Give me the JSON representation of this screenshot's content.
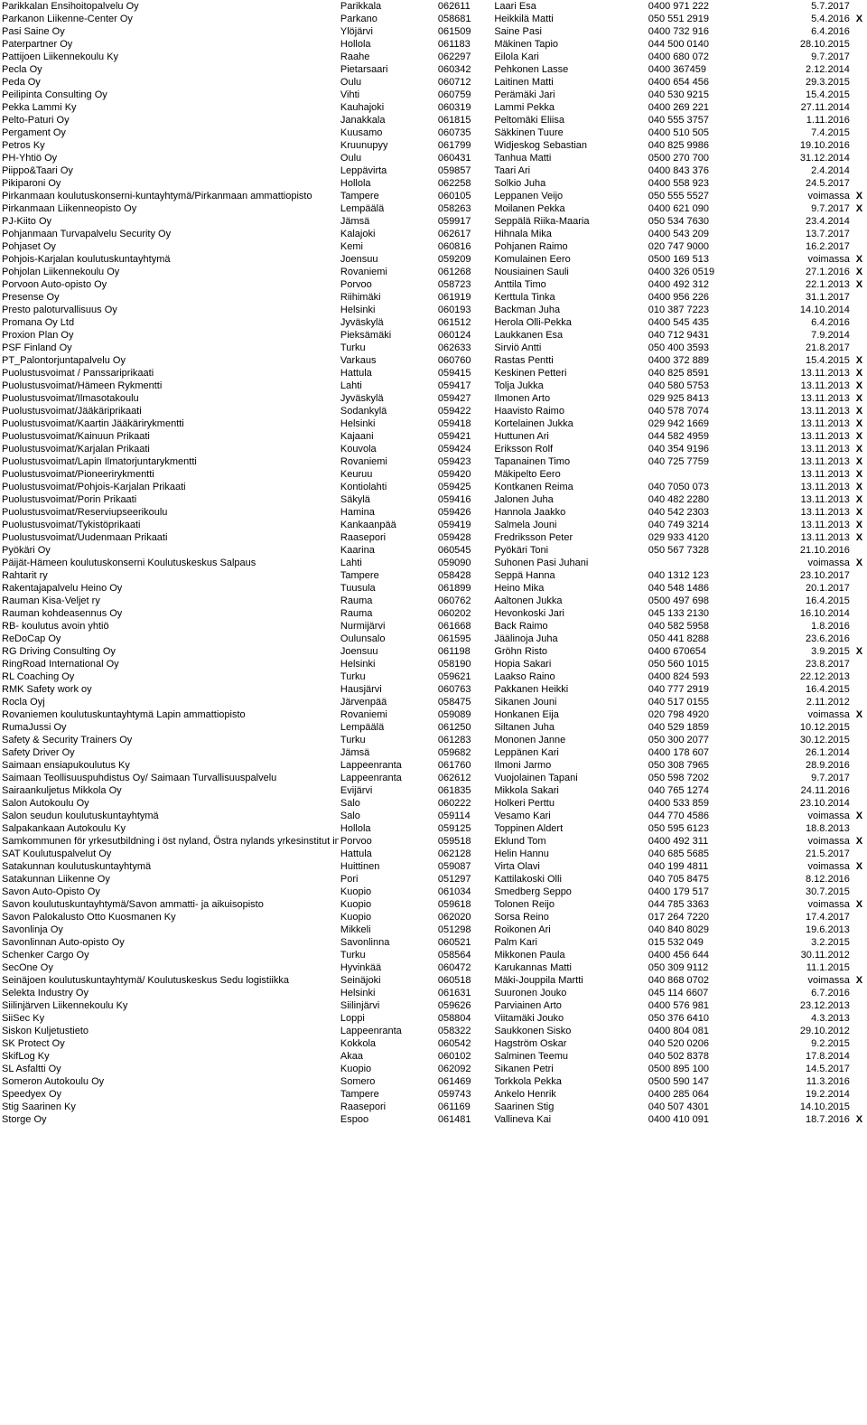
{
  "columns": [
    "company",
    "city",
    "code",
    "person",
    "phone",
    "date",
    "x"
  ],
  "widths": [
    330,
    95,
    55,
    150,
    110,
    90,
    15
  ],
  "rows": [
    [
      "Parikkalan Ensihoitopalvelu Oy",
      "Parikkala",
      "062611",
      "Laari Esa",
      "0400 971 222",
      "5.7.2017",
      ""
    ],
    [
      "Parkanon Liikenne-Center Oy",
      "Parkano",
      "058681",
      "Heikkilä Matti",
      "050 551 2919",
      "5.4.2016",
      "X"
    ],
    [
      "Pasi Saine Oy",
      "Ylöjärvi",
      "061509",
      "Saine Pasi",
      "0400 732 916",
      "6.4.2016",
      ""
    ],
    [
      "Paterpartner Oy",
      "Hollola",
      "061183",
      "Mäkinen Tapio",
      "044 500 0140",
      "28.10.2015",
      ""
    ],
    [
      "Pattijoen Liikennekoulu Ky",
      "Raahe",
      "062297",
      "Eilola Kari",
      "0400 680 072",
      "9.7.2017",
      ""
    ],
    [
      "Pecla Oy",
      "Pietarsaari",
      "060342",
      "Pehkonen Lasse",
      "0400 367459",
      "2.12.2014",
      ""
    ],
    [
      "Peda Oy",
      "Oulu",
      "060712",
      "Laitinen Matti",
      "0400 654 456",
      "29.3.2015",
      ""
    ],
    [
      "Peilipinta Consulting Oy",
      "Vihti",
      "060759",
      "Perämäki Jari",
      "040 530 9215",
      "15.4.2015",
      ""
    ],
    [
      "Pekka Lammi Ky",
      "Kauhajoki",
      "060319",
      "Lammi Pekka",
      "0400 269 221",
      "27.11.2014",
      ""
    ],
    [
      "Pelto-Paturi Oy",
      "Janakkala",
      "061815",
      "Peltomäki Eliisa",
      "040 555 3757",
      "1.11.2016",
      ""
    ],
    [
      "Pergament Oy",
      "Kuusamo",
      "060735",
      "Säkkinen Tuure",
      "0400 510 505",
      "7.4.2015",
      ""
    ],
    [
      "Petros Ky",
      "Kruunupyy",
      "061799",
      "Widjeskog Sebastian",
      "040 825 9986",
      "19.10.2016",
      ""
    ],
    [
      "PH-Yhtiö Oy",
      "Oulu",
      "060431",
      "Tanhua Matti",
      "0500 270 700",
      "31.12.2014",
      ""
    ],
    [
      "Piippo&Taari Oy",
      "Leppävirta",
      "059857",
      "Taari Ari",
      "0400 843 376",
      "2.4.2014",
      ""
    ],
    [
      "Pikiparoni Oy",
      "Hollola",
      "062258",
      "Solkio Juha",
      "0400 558 923",
      "24.5.2017",
      ""
    ],
    [
      "Pirkanmaan koulutuskonserni-kuntayhtymä/Pirkanmaan ammattiopisto",
      "Tampere",
      "060105",
      "Leppanen Veijo",
      "050 555 5527",
      "voimassa",
      "X"
    ],
    [
      "Pirkanmaan Liikenneopisto Oy",
      "Lempäälä",
      "058263",
      "Moilanen Pekka",
      "0400 621 090",
      "9.7.2017",
      "X"
    ],
    [
      "PJ-Kiito Oy",
      "Jämsä",
      "059917",
      "Seppälä Riika-Maaria",
      "050 534 7630",
      "23.4.2014",
      ""
    ],
    [
      "Pohjanmaan Turvapalvelu Security Oy",
      "Kalajoki",
      "062617",
      "Hihnala Mika",
      "0400 543 209",
      "13.7.2017",
      ""
    ],
    [
      "Pohjaset Oy",
      "Kemi",
      "060816",
      "Pohjanen Raimo",
      "020 747 9000",
      "16.2.2017",
      ""
    ],
    [
      "Pohjois-Karjalan koulutuskuntayhtymä",
      "Joensuu",
      "059209",
      "Komulainen Eero",
      "0500 169 513",
      "voimassa",
      "X"
    ],
    [
      "Pohjolan Liikennekoulu Oy",
      "Rovaniemi",
      "061268",
      "Nousiainen Sauli",
      "0400 326 0519",
      "27.1.2016",
      "X"
    ],
    [
      "Porvoon Auto-opisto Oy",
      "Porvoo",
      "058723",
      "Anttila Timo",
      "0400 492 312",
      "22.1.2013",
      "X"
    ],
    [
      "Presense Oy",
      "Riihimäki",
      "061919",
      "Kerttula Tinka",
      "0400 956 226",
      "31.1.2017",
      ""
    ],
    [
      "Presto paloturvallisuus Oy",
      "Helsinki",
      "060193",
      "Backman Juha",
      "010 387 7223",
      "14.10.2014",
      ""
    ],
    [
      "Promana Oy Ltd",
      "Jyväskylä",
      "061512",
      "Herola Olli-Pekka",
      "0400 545 435",
      "6.4.2016",
      ""
    ],
    [
      "Proxion Plan Oy",
      "Pieksämäki",
      "060124",
      "Laukkanen Esa",
      "040 712 9431",
      "7.9.2014",
      ""
    ],
    [
      "PSF Finland Oy",
      "Turku",
      "062633",
      "Sirviö Antti",
      "050 400 3593",
      "21.8.2017",
      ""
    ],
    [
      "PT_Palontorjuntapalvelu Oy",
      "Varkaus",
      "060760",
      "Rastas Pentti",
      "0400 372 889",
      "15.4.2015",
      "X"
    ],
    [
      "Puolustusvoimat / Panssariprikaati",
      "Hattula",
      "059415",
      "Keskinen Petteri",
      "040 825 8591",
      "13.11.2013",
      "X"
    ],
    [
      "Puolustusvoimat/Hämeen Rykmentti",
      "Lahti",
      "059417",
      "Tolja Jukka",
      "040 580 5753",
      "13.11.2013",
      "X"
    ],
    [
      "Puolustusvoimat/Ilmasotakoulu",
      "Jyväskylä",
      "059427",
      "Ilmonen Arto",
      "029 925 8413",
      "13.11.2013",
      "X"
    ],
    [
      "Puolustusvoimat/Jääkäriprikaati",
      "Sodankylä",
      "059422",
      "Haavisto Raimo",
      "040 578 7074",
      "13.11.2013",
      "X"
    ],
    [
      "Puolustusvoimat/Kaartin Jääkärirykmentti",
      "Helsinki",
      "059418",
      "Kortelainen Jukka",
      "029 942 1669",
      "13.11.2013",
      "X"
    ],
    [
      "Puolustusvoimat/Kainuun Prikaati",
      "Kajaani",
      "059421",
      "Huttunen Ari",
      "044 582 4959",
      "13.11.2013",
      "X"
    ],
    [
      "Puolustusvoimat/Karjalan Prikaati",
      "Kouvola",
      "059424",
      "Eriksson Rolf",
      "040 354 9196",
      "13.11.2013",
      "X"
    ],
    [
      "Puolustusvoimat/Lapin Ilmatorjuntarykmentti",
      "Rovaniemi",
      "059423",
      "Tapanainen Timo",
      "040 725 7759",
      "13.11.2013",
      "X"
    ],
    [
      "Puolustusvoimat/Pioneerirykmentti",
      "Keuruu",
      "059420",
      "Mäkipelto Eero",
      "",
      "13.11.2013",
      "X"
    ],
    [
      "Puolustusvoimat/Pohjois-Karjalan Prikaati",
      "Kontiolahti",
      "059425",
      "Kontkanen Reima",
      "040 7050 073",
      "13.11.2013",
      "X"
    ],
    [
      "Puolustusvoimat/Porin Prikaati",
      "Säkylä",
      "059416",
      "Jalonen Juha",
      "040 482 2280",
      "13.11.2013",
      "X"
    ],
    [
      "Puolustusvoimat/Reserviupseerikoulu",
      "Hamina",
      "059426",
      "Hannola Jaakko",
      "040 542 2303",
      "13.11.2013",
      "X"
    ],
    [
      "Puolustusvoimat/Tykistöprikaati",
      "Kankaanpää",
      "059419",
      "Salmela Jouni",
      "040 749 3214",
      "13.11.2013",
      "X"
    ],
    [
      "Puolustusvoimat/Uudenmaan Prikaati",
      "Raasepori",
      "059428",
      "Fredriksson Peter",
      "029 933 4120",
      "13.11.2013",
      "X"
    ],
    [
      "Pyökäri Oy",
      "Kaarina",
      "060545",
      "Pyökäri Toni",
      "050 567 7328",
      "21.10.2016",
      ""
    ],
    [
      "Päijät-Hämeen koulutuskonserni Koulutuskeskus Salpaus",
      "Lahti",
      "059090",
      "Suhonen Pasi Juhani",
      "",
      "voimassa",
      "X"
    ],
    [
      "Rahtarit ry",
      "Tampere",
      "058428",
      "Seppä Hanna",
      "040 1312 123",
      "23.10.2017",
      ""
    ],
    [
      "Rakentajapalvelu Heino Oy",
      "Tuusula",
      "061899",
      "Heino Mika",
      "040 548 1486",
      "20.1.2017",
      ""
    ],
    [
      "Rauman Kisa-Veljet ry",
      "Rauma",
      "060762",
      "Aaltonen Jukka",
      "0500 497 698",
      "16.4.2015",
      ""
    ],
    [
      "Rauman kohdeasennus Oy",
      "Rauma",
      "060202",
      "Hevonkoski Jari",
      "045 133 2130",
      "16.10.2014",
      ""
    ],
    [
      "RB- koulutus avoin yhtiö",
      "Nurmijärvi",
      "061668",
      "Back Raimo",
      "040 582 5958",
      "1.8.2016",
      ""
    ],
    [
      "ReDoCap Oy",
      "Oulunsalo",
      "061595",
      "Jäälinoja Juha",
      "050 441 8288",
      "23.6.2016",
      ""
    ],
    [
      "RG Driving Consulting Oy",
      "Joensuu",
      "061198",
      "Gröhn Risto",
      "0400 670654",
      "3.9.2015",
      "X"
    ],
    [
      "RingRoad International Oy",
      "Helsinki",
      "058190",
      "Hopia Sakari",
      "050 560 1015",
      "23.8.2017",
      ""
    ],
    [
      "RL Coaching Oy",
      "Turku",
      "059621",
      "Laakso Raino",
      "0400 824 593",
      "22.12.2013",
      ""
    ],
    [
      "RMK Safety work oy",
      "Hausjärvi",
      "060763",
      "Pakkanen Heikki",
      "040 777 2919",
      "16.4.2015",
      ""
    ],
    [
      "Rocla Oyj",
      "Järvenpää",
      "058475",
      "Sikanen Jouni",
      "040 517 0155",
      "2.11.2012",
      ""
    ],
    [
      "Rovaniemen koulutuskuntayhtymä Lapin ammattiopisto",
      "Rovaniemi",
      "059089",
      "Honkanen Eija",
      "020 798 4920",
      "voimassa",
      "X"
    ],
    [
      "RumaJussi Oy",
      "Lempäälä",
      "061250",
      "Siltanen Juha",
      "040 529 1859",
      "10.12.2015",
      ""
    ],
    [
      "Safety & Security Trainers Oy",
      "Turku",
      "061283",
      "Mononen Janne",
      "050 300 2077",
      "30.12.2015",
      ""
    ],
    [
      "Safety Driver Oy",
      "Jämsä",
      "059682",
      "Leppänen Kari",
      "0400 178 607",
      "26.1.2014",
      ""
    ],
    [
      "Saimaan ensiapukoulutus Ky",
      "Lappeenranta",
      "061760",
      "Ilmoni Jarmo",
      "050 308 7965",
      "28.9.2016",
      ""
    ],
    [
      "Saimaan Teollisuuspuhdistus Oy/ Saimaan Turvallisuuspalvelu",
      "Lappeenranta",
      "062612",
      "Vuojolainen Tapani",
      "050 598 7202",
      "9.7.2017",
      ""
    ],
    [
      "Sairaankuljetus Mikkola Oy",
      "Evijärvi",
      "061835",
      "Mikkola Sakari",
      "040 765 1274",
      "24.11.2016",
      ""
    ],
    [
      "Salon Autokoulu Oy",
      "Salo",
      "060222",
      "Holkeri Perttu",
      "0400 533 859",
      "23.10.2014",
      ""
    ],
    [
      "Salon seudun koulutuskuntayhtymä",
      "Salo",
      "059114",
      "Vesamo Kari",
      "044 770 4586",
      "voimassa",
      "X"
    ],
    [
      "Salpakankaan Autokoulu Ky",
      "Hollola",
      "059125",
      "Toppinen Aldert",
      "050 595 6123",
      "18.8.2013",
      ""
    ],
    [
      "Samkommunen för yrkesutbildning i öst nyland, Östra nylands yrkesinstitut inveon",
      "Porvoo",
      "059518",
      "Eklund Tom",
      "0400 492 311",
      "voimassa",
      "X"
    ],
    [
      "SAT Koulutuspalvelut Oy",
      "Hattula",
      "062128",
      "Helin Hannu",
      "040 685 5685",
      "21.5.2017",
      ""
    ],
    [
      "Satakunnan koulutuskuntayhtymä",
      "Huittinen",
      "059087",
      "Virta Olavi",
      "040 199 4811",
      "voimassa",
      "X"
    ],
    [
      "Satakunnan Liikenne Oy",
      "Pori",
      "051297",
      "Kattilakoski Olli",
      "040 705 8475",
      "8.12.2016",
      ""
    ],
    [
      "Savon Auto-Opisto Oy",
      "Kuopio",
      "061034",
      "Smedberg Seppo",
      "0400 179 517",
      "30.7.2015",
      ""
    ],
    [
      "Savon koulutuskuntayhtymä/Savon ammatti- ja aikuisopisto",
      "Kuopio",
      "059618",
      "Tolonen Reijo",
      "044 785 3363",
      "voimassa",
      "X"
    ],
    [
      "Savon Palokalusto Otto Kuosmanen Ky",
      "Kuopio",
      "062020",
      "Sorsa Reino",
      "017 264 7220",
      "17.4.2017",
      ""
    ],
    [
      "Savonlinja Oy",
      "Mikkeli",
      "051298",
      "Roikonen Ari",
      "040 840 8029",
      "19.6.2013",
      ""
    ],
    [
      "Savonlinnan Auto-opisto Oy",
      "Savonlinna",
      "060521",
      "Palm Kari",
      "015 532 049",
      "3.2.2015",
      ""
    ],
    [
      "Schenker Cargo Oy",
      "Turku",
      "058564",
      "Mikkonen Paula",
      "0400 456 644",
      "30.11.2012",
      ""
    ],
    [
      "SecOne Oy",
      "Hyvinkää",
      "060472",
      "Karukannas Matti",
      "050 309 9112",
      "11.1.2015",
      ""
    ],
    [
      "Seinäjoen koulutuskuntayhtymä/ Koulutuskeskus Sedu logistiikka",
      "Seinäjoki",
      "060518",
      "Mäki-Jouppila Martti",
      "040 868 0702",
      "voimassa",
      "X"
    ],
    [
      "Selekta Industry Oy",
      "Helsinki",
      "061631",
      "Suuronen Jouko",
      "045 114 6607",
      "6.7.2016",
      ""
    ],
    [
      "Siilinjärven Liikennekoulu Ky",
      "Siilinjärvi",
      "059626",
      "Parviainen Arto",
      "0400 576 981",
      "23.12.2013",
      ""
    ],
    [
      "SiiSec Ky",
      "Loppi",
      "058804",
      "Viitamäki Jouko",
      "050 376 6410",
      "4.3.2013",
      ""
    ],
    [
      "Siskon Kuljetustieto",
      "Lappeenranta",
      "058322",
      "Saukkonen Sisko",
      "0400 804 081",
      "29.10.2012",
      ""
    ],
    [
      "SK Protect Oy",
      "Kokkola",
      "060542",
      "Hagström Oskar",
      "040 520 0206",
      "9.2.2015",
      ""
    ],
    [
      "SkifLog Ky",
      "Akaa",
      "060102",
      "Salminen Teemu",
      "040 502 8378",
      "17.8.2014",
      ""
    ],
    [
      "SL Asfaltti Oy",
      "Kuopio",
      "062092",
      "Sikanen Petri",
      "0500 895 100",
      "14.5.2017",
      ""
    ],
    [
      "Someron Autokoulu Oy",
      "Somero",
      "061469",
      "Torkkola Pekka",
      "0500 590 147",
      "11.3.2016",
      ""
    ],
    [
      "Speedyex Oy",
      "Tampere",
      "059743",
      "Ankelo Henrik",
      "0400 285 064",
      "19.2.2014",
      ""
    ],
    [
      "Stig Saarinen Ky",
      "Raasepori",
      "061169",
      "Saarinen Stig",
      "040 507 4301",
      "14.10.2015",
      ""
    ],
    [
      "Storge Oy",
      "Espoo",
      "061481",
      "Vallineva Kai",
      "0400 410 091",
      "18.7.2016",
      "X"
    ]
  ]
}
